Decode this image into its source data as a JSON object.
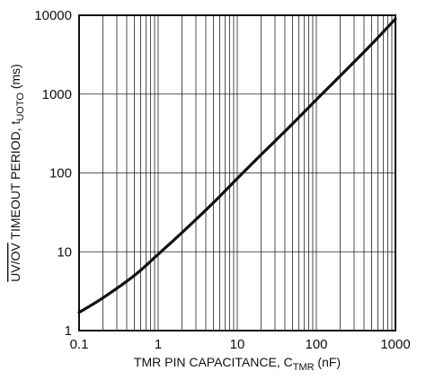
{
  "chart_data": {
    "type": "line",
    "x_scale": "log",
    "y_scale": "log",
    "xlim": [
      0.1,
      1000
    ],
    "ylim": [
      1,
      10000
    ],
    "grid": true,
    "xlabel": {
      "main": "TMR PIN CAPACITANCE, C",
      "sub": "TMR",
      "tail": " (nF)"
    },
    "ylabel": {
      "overline": "UV/OV",
      "main": " TIMEOUT PERIOD, t",
      "sub": "UOTO",
      "tail": " (ms)"
    },
    "x_ticks": [
      "0.1",
      "1",
      "10",
      "100",
      "1000"
    ],
    "y_ticks": [
      "1",
      "10",
      "100",
      "1000",
      "10000"
    ],
    "series": [
      {
        "x": [
          0.1,
          0.2,
          0.5,
          1,
          2,
          5,
          10,
          20,
          50,
          100,
          200,
          500,
          1000
        ],
        "y": [
          1.7,
          2.6,
          5.0,
          9.3,
          17.5,
          42,
          85,
          170,
          420,
          850,
          1700,
          4300,
          9000
        ]
      }
    ]
  }
}
